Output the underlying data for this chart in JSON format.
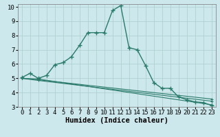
{
  "xlabel": "Humidex (Indice chaleur)",
  "background_color": "#cce8ec",
  "grid_color": "#aacccc",
  "line_color": "#2a7a6a",
  "xlim": [
    -0.5,
    23.5
  ],
  "ylim": [
    3,
    10.2
  ],
  "yticks": [
    3,
    4,
    5,
    6,
    7,
    8,
    9,
    10
  ],
  "xticks": [
    0,
    1,
    2,
    3,
    4,
    5,
    6,
    7,
    8,
    9,
    10,
    11,
    12,
    13,
    14,
    15,
    16,
    17,
    18,
    19,
    20,
    21,
    22,
    23
  ],
  "line1_x": [
    0,
    1,
    2,
    3,
    4,
    5,
    6,
    7,
    8,
    9,
    10,
    11,
    12,
    13,
    14,
    15,
    16,
    17,
    18,
    19,
    20,
    21,
    22,
    23
  ],
  "line1_y": [
    5.05,
    5.35,
    5.0,
    5.2,
    5.95,
    6.1,
    6.5,
    7.3,
    8.2,
    8.2,
    8.2,
    9.75,
    10.1,
    7.15,
    7.0,
    5.9,
    4.7,
    4.3,
    4.3,
    3.7,
    3.5,
    3.35,
    3.3,
    3.1
  ],
  "line2_x": [
    0,
    2,
    23
  ],
  "line2_y": [
    5.0,
    4.95,
    3.15
  ],
  "line3_x": [
    0,
    2,
    23
  ],
  "line3_y": [
    5.0,
    4.85,
    3.4
  ],
  "line4_x": [
    0,
    2,
    23
  ],
  "line4_y": [
    5.0,
    4.9,
    3.55
  ],
  "font_size_axis": 7.5,
  "font_size_tick": 6.5
}
